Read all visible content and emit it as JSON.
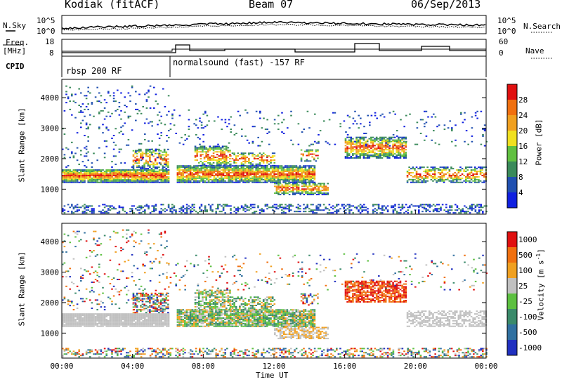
{
  "header": {
    "title": "Kodiak (fitACF)",
    "beam": "Beam 07",
    "date": "06/Sep/2013"
  },
  "left_labels": {
    "nsky": "N.Sky",
    "freq": "Freq.",
    "mhz": "[MHz]",
    "cpid": "CPID"
  },
  "right_labels": {
    "nsearch": "N.Search",
    "nave": "Nave"
  },
  "top_axes": {
    "noise_top": "10^5",
    "noise_bottom": "10^0",
    "freq_top": "18",
    "freq_bottom": "8",
    "nave_top": "60",
    "nave_bottom": "0"
  },
  "cpid": {
    "seg1": "rbsp 200 RF",
    "seg2": "normalsound (fast) -157 RF"
  },
  "chart_data": {
    "type": "heatmap",
    "x_axis": {
      "label": "Time UT",
      "ticks": [
        "00:00",
        "04:00",
        "08:00",
        "12:00",
        "16:00",
        "20:00",
        "00:00"
      ],
      "range_hours": [
        0,
        24
      ]
    },
    "y_axis": {
      "label": "Slant Range [km]",
      "ticks": [
        1000,
        2000,
        3000,
        4000
      ],
      "range_km": [
        180,
        4600
      ]
    },
    "power_scale": {
      "label": "Power [dB]",
      "ticks": [
        "4",
        "8",
        "12",
        "16",
        "20",
        "24",
        "28"
      ],
      "colors": [
        "#1020e0",
        "#2050b0",
        "#3a8a5a",
        "#60c040",
        "#f0e020",
        "#f0a020",
        "#f07010",
        "#e01010"
      ]
    },
    "velocity_scale": {
      "label": "Velocity [m s",
      "unit_exp": "-1",
      "close": "]",
      "ticks": [
        "1000",
        "500",
        "100",
        "25",
        "-25",
        "-100",
        "-500",
        "-1000"
      ],
      "colors": [
        "#2030c0",
        "#3070a0",
        "#3a8a6a",
        "#5cc040",
        "#c0c0c0",
        "#f0a020",
        "#f07010",
        "#e01010"
      ]
    }
  }
}
